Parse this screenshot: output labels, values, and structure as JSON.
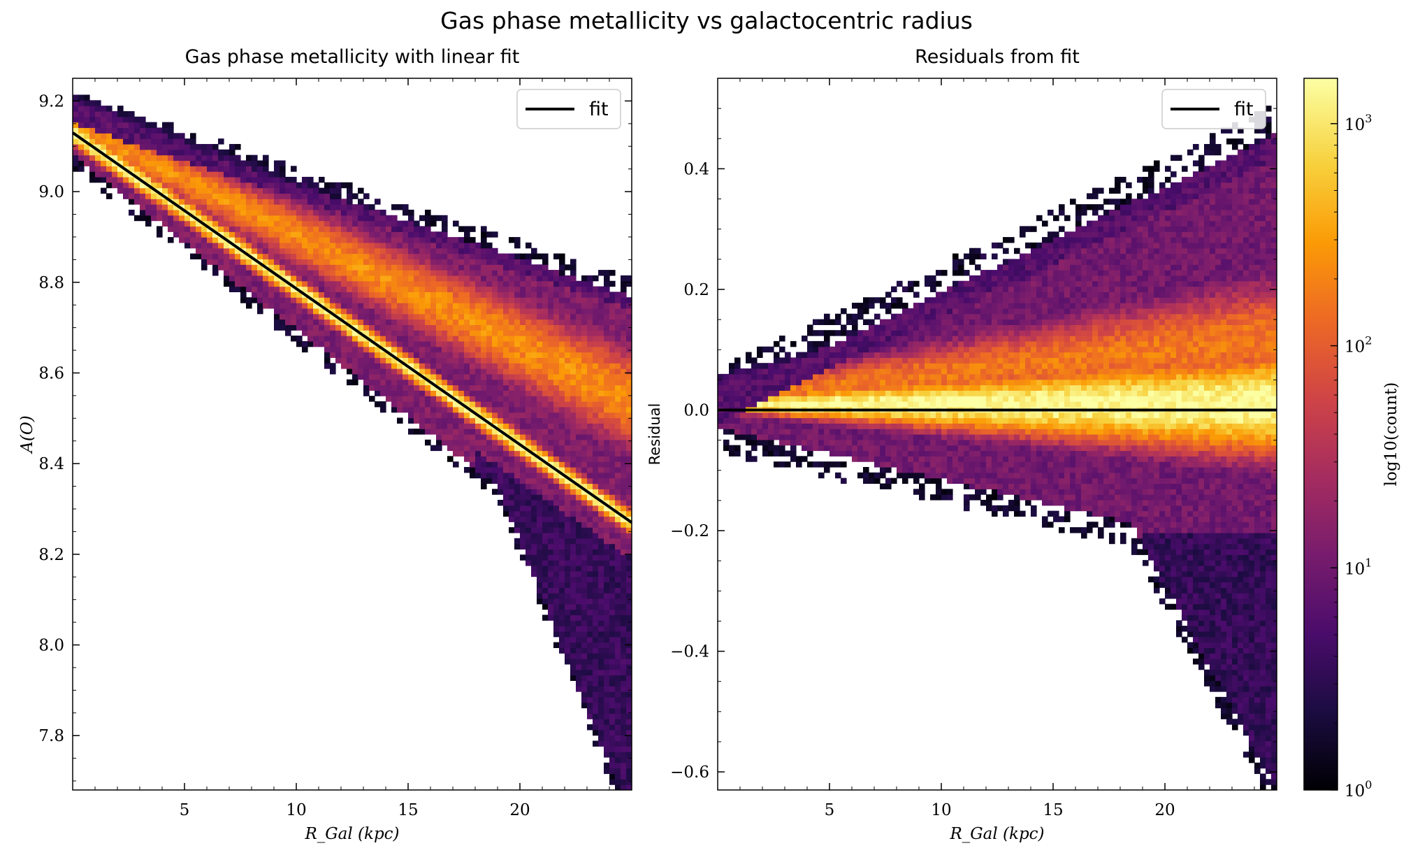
{
  "figure": {
    "title": "Gas phase metallicity vs galactocentric radius"
  },
  "colors": {
    "fit_line": "#000000",
    "colormap": [
      "#000004",
      "#1b0c41",
      "#4a0c6b",
      "#781c6d",
      "#a52c60",
      "#cf4446",
      "#ed6925",
      "#fb9b06",
      "#f7d13d",
      "#fcffa4"
    ]
  },
  "chart_data": [
    {
      "type": "heatmap",
      "title": "Gas phase metallicity with linear fit",
      "xlabel": "R_Gal (kpc)",
      "ylabel": "A(O)",
      "xlim": [
        0,
        25
      ],
      "ylim": [
        7.68,
        9.25
      ],
      "xticks": [
        5,
        10,
        15,
        20
      ],
      "xtick_labels": [
        "5",
        "10",
        "15",
        "20"
      ],
      "yticks": [
        7.8,
        8.0,
        8.2,
        8.4,
        8.6,
        8.8,
        9.0,
        9.2
      ],
      "ytick_labels": [
        "7.8",
        "8.0",
        "8.2",
        "8.4",
        "8.6",
        "8.8",
        "9.0",
        "9.2"
      ],
      "legend": {
        "position": "top-right",
        "entries": [
          "fit"
        ]
      },
      "fit_line": {
        "x": [
          0,
          25
        ],
        "y": [
          9.13,
          8.27
        ]
      },
      "density_ridges": [
        {
          "x": [
            0,
            5,
            10,
            15,
            20,
            25
          ],
          "y": [
            9.13,
            8.94,
            8.72,
            8.55,
            8.41,
            8.29
          ]
        }
      ],
      "grid": false
    },
    {
      "type": "heatmap",
      "title": "Residuals from fit",
      "xlabel": "R_Gal (kpc)",
      "ylabel": "Residual",
      "xlim": [
        0,
        25
      ],
      "ylim": [
        -0.63,
        0.55
      ],
      "xticks": [
        5,
        10,
        15,
        20
      ],
      "xtick_labels": [
        "5",
        "10",
        "15",
        "20"
      ],
      "yticks": [
        -0.6,
        -0.4,
        -0.2,
        0.0,
        0.2,
        0.4
      ],
      "ytick_labels": [
        "−0.6",
        "−0.4",
        "−0.2",
        "0.0",
        "0.2",
        "0.4"
      ],
      "legend": {
        "position": "top-right",
        "entries": [
          "fit"
        ]
      },
      "fit_line": {
        "x": [
          0,
          25
        ],
        "y": [
          0,
          0
        ]
      },
      "grid": false
    }
  ],
  "colorbar": {
    "label": "log10(count)",
    "scale": "log",
    "range": [
      1,
      1600
    ],
    "ticks": [
      1,
      10,
      100,
      1000
    ],
    "tick_labels": [
      "10",
      "10",
      "10",
      "10"
    ],
    "tick_exponents": [
      "0",
      "1",
      "2",
      "3"
    ]
  }
}
